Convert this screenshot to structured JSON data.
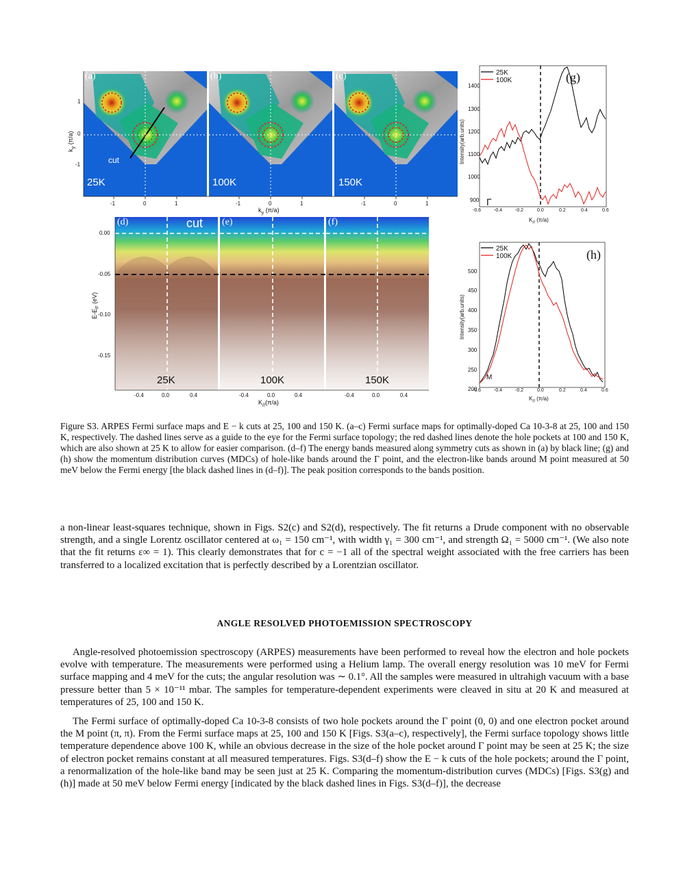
{
  "figure": {
    "map_panels": [
      {
        "tag": "(a)",
        "temperature": "25K",
        "cut_label": "cut"
      },
      {
        "tag": "(b)",
        "temperature": "100K"
      },
      {
        "tag": "(c)",
        "temperature": "150K"
      }
    ],
    "map_axes": {
      "ylabel": "k",
      "ylabel_sub": "y",
      "ylabel_unit": " (π/a)",
      "y_ticks": [
        "1",
        "0",
        "-1"
      ],
      "x_ticks": [
        "-1",
        "0",
        "1"
      ],
      "xlabel": "k",
      "xlabel_sub": "y",
      "xlabel_unit": " (π/a)"
    },
    "cut_panels": [
      {
        "tag": "(d)",
        "temperature": "25K",
        "cut_label": "cut"
      },
      {
        "tag": "(e)",
        "temperature": "100K"
      },
      {
        "tag": "(f)",
        "temperature": "150K"
      }
    ],
    "cut_axes": {
      "ylabel": "E-E",
      "ylabel_sub": "F",
      "ylabel_unit": " (eV)",
      "y_ticks": [
        "0.00",
        "-0.05",
        "-0.10",
        "-0.15"
      ],
      "x_ticks": [
        "-0.4",
        "0.0",
        "0.4"
      ],
      "xlabel": "K",
      "xlabel_sub": "//",
      "xlabel_unit": "(π/a)"
    },
    "mdc_g": {
      "tag": "(g)",
      "point_label": "Γ",
      "legend": [
        "25K",
        "100K"
      ],
      "ylabel": "Intensity(arb.units)",
      "y_ticks": [
        "1400",
        "1300",
        "1200",
        "1100",
        "1000",
        "900"
      ],
      "x_ticks": [
        "-0.6",
        "-0.4",
        "-0.2",
        "0.0",
        "0.2",
        "0.4",
        "0.6"
      ],
      "xlabel": "K",
      "xlabel_sub": "//",
      "xlabel_unit": " (π/a)"
    },
    "mdc_h": {
      "tag": "(h)",
      "point_label": "M",
      "legend": [
        "25K",
        "100K"
      ],
      "ylabel": "Intensity(arb.units)",
      "y_ticks": [
        "500",
        "450",
        "400",
        "350",
        "300",
        "250",
        "200"
      ],
      "x_ticks": [
        "-0.6",
        "-0.4",
        "-0.2",
        "0.0",
        "0.2",
        "0.4",
        "0.6"
      ],
      "xlabel": "K",
      "xlabel_sub": "//",
      "xlabel_unit": " (π/a)"
    },
    "colors": {
      "series_25K": "#000000",
      "series_100K": "#e0201b",
      "map_bg": "#1463d6"
    }
  },
  "caption": "Figure S3. ARPES Fermi surface maps and E − k cuts at 25, 100 and 150 K. (a–c) Fermi surface maps for optimally-doped Ca 10-3-8 at 25, 100 and 150 K, respectively. The dashed lines serve as a guide to the eye for the Fermi surface topology; the red dashed lines denote the hole pockets at 100 and 150 K, which are also shown at 25 K to allow for easier comparison. (d–f) The energy bands measured along symmetry cuts as shown in (a) by black line; (g) and (h) show the momentum distribution curves (MDCs) of hole-like bands around the Γ point, and the electron-like bands around M point measured at 50 meV below the Fermi energy [the black dashed lines in (d–f)]. The peak position corresponds to the bands position.",
  "paragraph_1": "a non-linear least-squares technique, shown in Figs. S2(c) and S2(d), respectively. The fit returns a Drude component with no observable strength, and a single Lorentz oscillator centered at ω₁ = 150 cm⁻¹, with width γ₁ = 300 cm⁻¹, and strength Ω₁ = 5000 cm⁻¹. (We also note that the fit returns ε∞ = 1). This clearly demonstrates that for c = −1 all of the spectral weight associated with the free carriers has been transferred to a localized excitation that is perfectly described by a Lorentzian oscillator.",
  "section_heading": "ANGLE RESOLVED PHOTOEMISSION SPECTROSCOPY",
  "paragraph_2": "Angle-resolved photoemission spectroscopy (ARPES) measurements have been performed to reveal how the electron and hole pockets evolve with temperature. The measurements were performed using a Helium lamp. The overall energy resolution was 10 meV for Fermi surface mapping and 4 meV for the cuts; the angular resolution was ∼ 0.1°. All the samples were measured in ultrahigh vacuum with a base pressure better than 5 × 10⁻¹¹ mbar. The samples for temperature-dependent experiments were cleaved in situ at 20 K and measured at temperatures of 25, 100 and 150 K.",
  "paragraph_3": "The Fermi surface of optimally-doped Ca 10-3-8 consists of two hole pockets around the Γ point (0, 0) and one electron pocket around the M point (π, π). From the Fermi surface maps at 25, 100 and 150 K [Figs. S3(a–c), respectively], the Fermi surface topology shows little temperature dependence above 100 K, while an obvious decrease in the size of the hole pocket around Γ point may be seen at 25 K; the size of electron pocket remains constant at all measured temperatures. Figs. S3(d–f) show the E − k cuts of the hole pockets; around the Γ point, a renormalization of the hole-like band may be seen just at 25 K. Comparing the momentum-distribution curves (MDCs) [Figs. S3(g) and (h)] made at 50 meV below Fermi energy [indicated by the black dashed lines in Figs. S3(d–f)], the decrease"
}
